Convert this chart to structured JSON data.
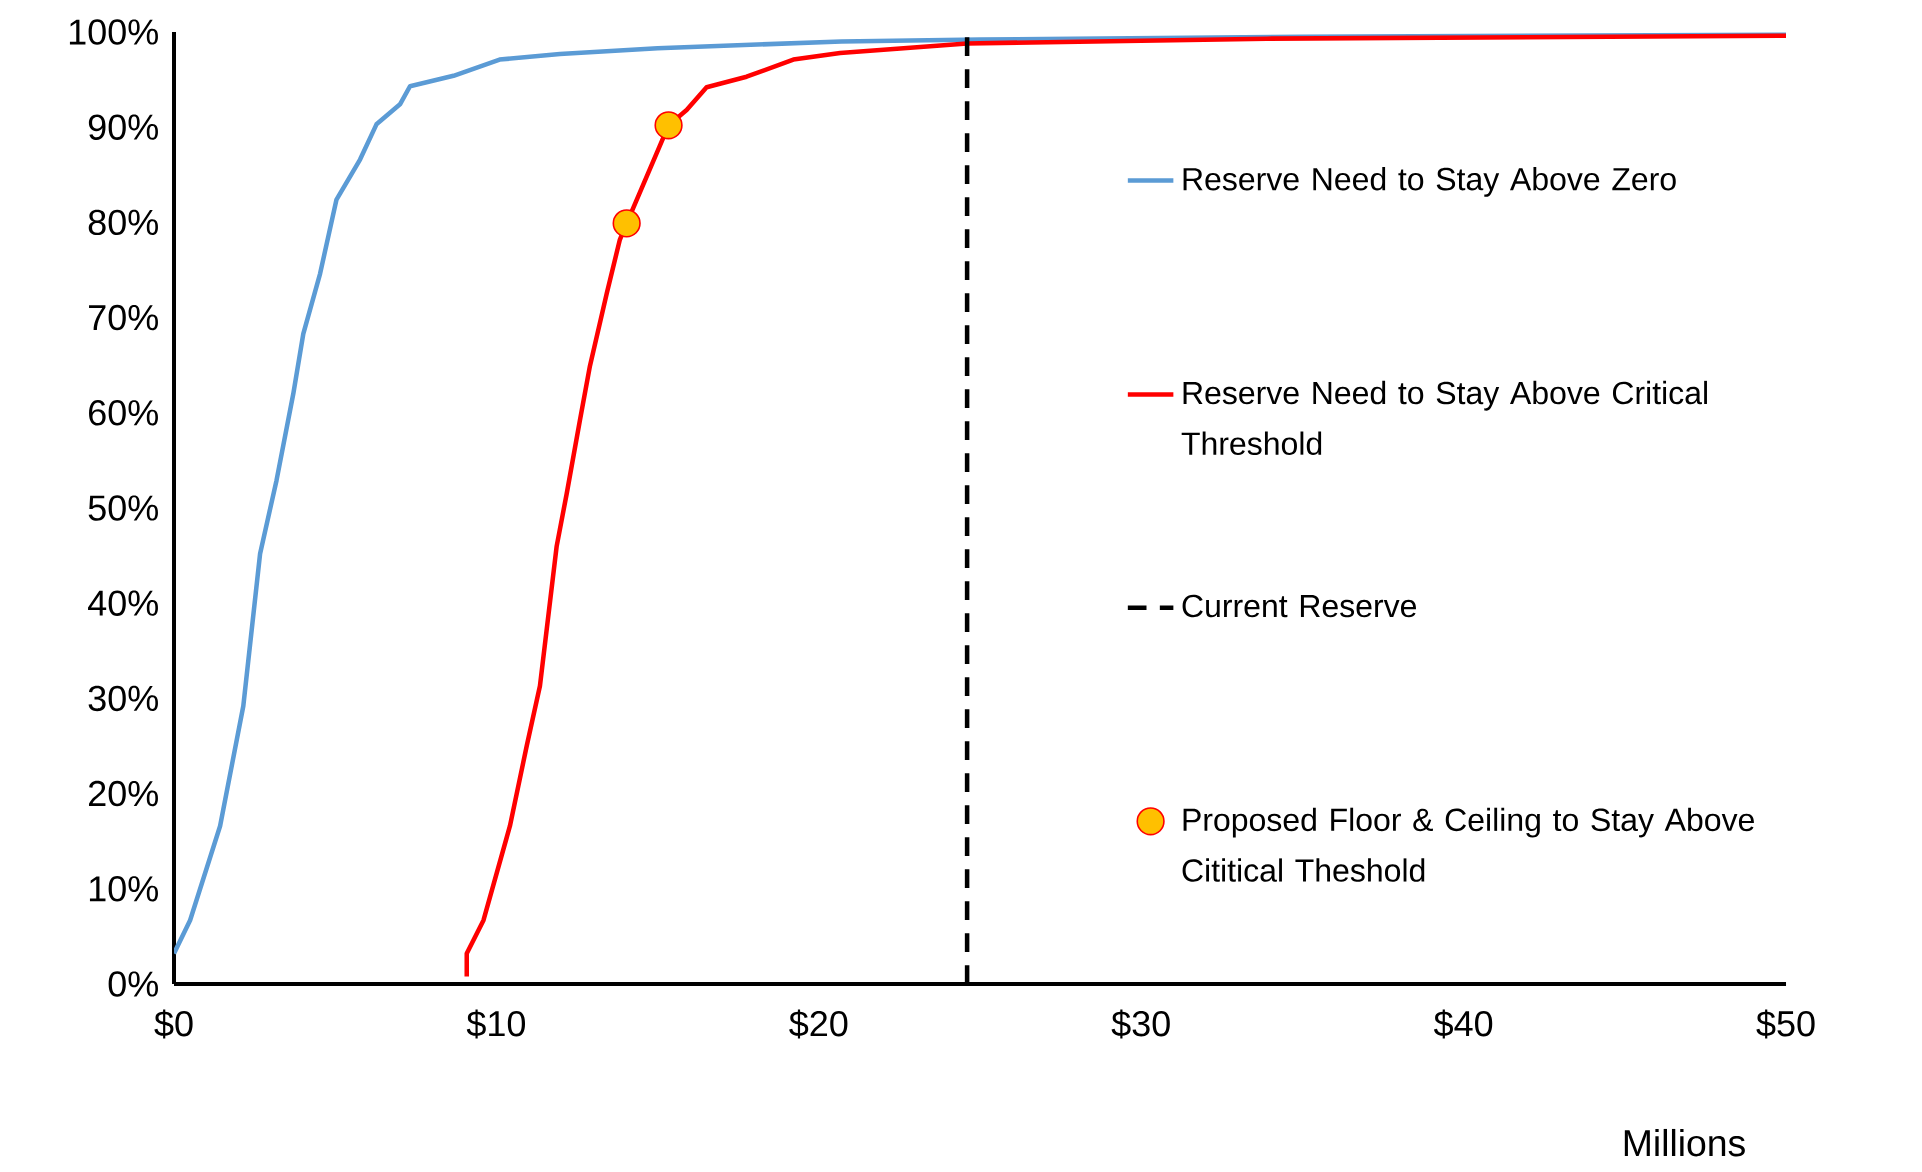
{
  "chart_data": {
    "type": "line",
    "xlabel": "Millions",
    "xlim": [
      0,
      50
    ],
    "ylim": [
      0,
      100
    ],
    "xticks": [
      {
        "value": 0,
        "label": "$0"
      },
      {
        "value": 10,
        "label": "$10"
      },
      {
        "value": 20,
        "label": "$20"
      },
      {
        "value": 30,
        "label": "$30"
      },
      {
        "value": 40,
        "label": "$40"
      },
      {
        "value": 50,
        "label": "$50"
      }
    ],
    "yticks": [
      {
        "value": 0,
        "label": "0%"
      },
      {
        "value": 10,
        "label": "10%"
      },
      {
        "value": 20,
        "label": "20%"
      },
      {
        "value": 30,
        "label": "30%"
      },
      {
        "value": 40,
        "label": "40%"
      },
      {
        "value": 50,
        "label": "50%"
      },
      {
        "value": 60,
        "label": "60%"
      },
      {
        "value": 70,
        "label": "70%"
      },
      {
        "value": 80,
        "label": "80%"
      },
      {
        "value": 90,
        "label": "90%"
      },
      {
        "value": 100,
        "label": "100%"
      }
    ],
    "legend": "right",
    "grid": false,
    "marker": "none",
    "line_style": "solid",
    "series": [
      {
        "name": "Reserve Need to Stay Above Zero",
        "color": "#5b9bd5",
        "x": [
          0,
          0.5,
          1.43,
          2.15,
          2.67,
          3.18,
          3.7,
          4.01,
          4.53,
          5.04,
          5.77,
          6.28,
          7.01,
          7.32,
          8.67,
          10.1,
          11.97,
          15,
          20.7,
          25,
          35,
          50
        ],
        "values": [
          3.2,
          6.7,
          16.6,
          29.2,
          45.2,
          52.9,
          62,
          68.3,
          74.6,
          82.4,
          86.6,
          90.3,
          92.4,
          94.3,
          95.4,
          97.1,
          97.7,
          98.3,
          99,
          99.2,
          99.5,
          99.7
        ]
      },
      {
        "name": "Reserve Need to Stay Above Critical Threshold",
        "color": "#ff0000",
        "x": [
          9.08,
          9.08,
          9.6,
          10.42,
          10.94,
          11.35,
          11.87,
          12.18,
          12.59,
          12.9,
          13.42,
          13.83,
          14.04,
          15.34,
          15.9,
          16.52,
          17.76,
          19.21,
          20.66,
          24.6,
          33.9,
          50
        ],
        "values": [
          0.8,
          3.2,
          6.7,
          16.6,
          25,
          31.3,
          46,
          51.5,
          59.2,
          64.9,
          72.5,
          78.2,
          79.9,
          90.2,
          91.8,
          94.2,
          95.3,
          97.1,
          97.8,
          98.8,
          99.3,
          99.6
        ]
      },
      {
        "name": "Current Reserve",
        "color": "#000000",
        "line_style": "dashed",
        "x": [
          24.6,
          24.6
        ],
        "values": [
          0,
          100
        ]
      },
      {
        "name": "Proposed Floor & Ceiling to Stay Above Cititical Theshold",
        "type": "scatter",
        "color": "#ffc000",
        "marker": "circle",
        "x": [
          14.04,
          15.34
        ],
        "values": [
          79.9,
          90.2
        ]
      }
    ]
  }
}
